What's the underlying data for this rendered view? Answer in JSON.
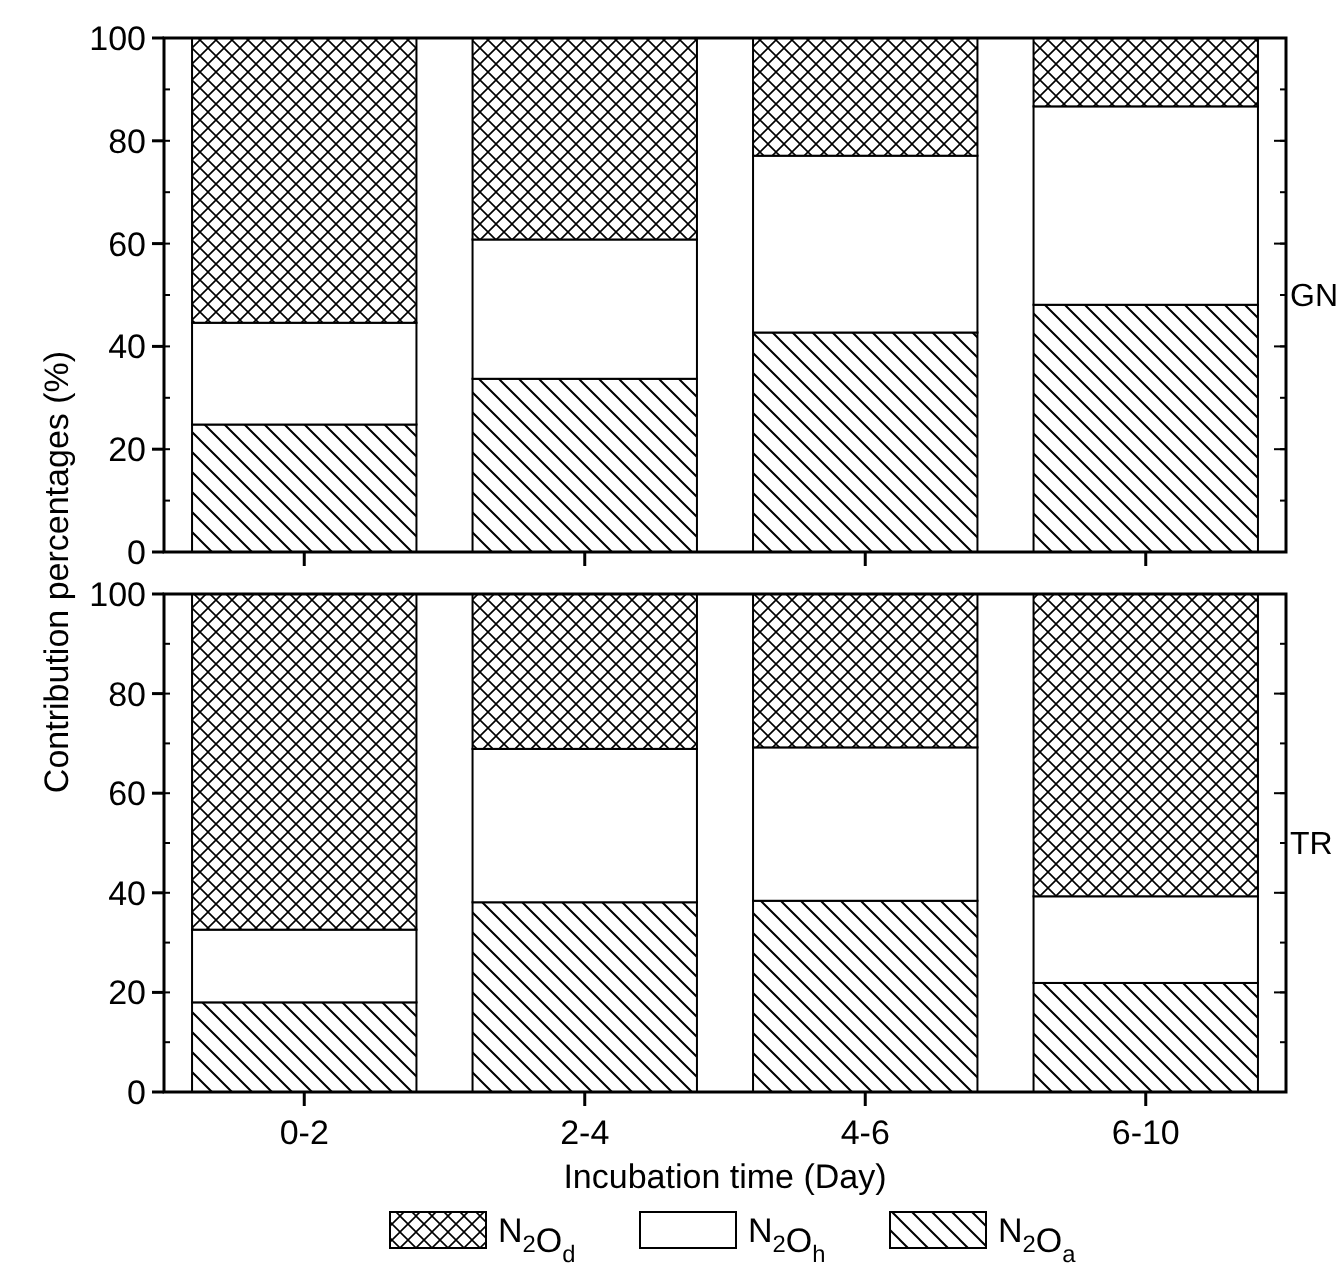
{
  "chart_data": [
    {
      "type": "bar",
      "stacked": true,
      "title": "GN",
      "categories": [
        null,
        null,
        null,
        null
      ],
      "ylabel": "Contribution percentages (%)",
      "ylim": [
        0,
        100
      ],
      "yticks": [
        0,
        20,
        40,
        60,
        80,
        100
      ],
      "tick_labels": "y",
      "legend": false,
      "series": [
        {
          "color": "#000000",
          "values": [
            24.8,
            33.7,
            42.7,
            48.1
          ]
        },
        {
          "color": "#ffffff",
          "values": [
            19.8,
            27.1,
            34.4,
            38.6
          ]
        },
        {
          "color": "#000000",
          "values": [
            55.4,
            39.2,
            22.9,
            13.3
          ]
        }
      ]
    },
    {
      "type": "bar",
      "stacked": true,
      "title": "TR",
      "categories": [
        "0-2",
        "2-4",
        "4-6",
        "6-10"
      ],
      "xlabel": "Incubation time (Day)",
      "ylim": [
        0,
        100
      ],
      "yticks": [
        0,
        20,
        40,
        60,
        80,
        100
      ],
      "legend": "bottom",
      "series": [
        {
          "name": "N$_{2}$O$_{a}$",
          "color": "#000000",
          "values": [
            18.0,
            38.1,
            38.4,
            21.9
          ]
        },
        {
          "name": "N$_{2}$O$_{h}$",
          "color": "#ffffff",
          "values": [
            14.6,
            30.8,
            30.8,
            17.4
          ]
        },
        {
          "name": "N$_{2}$O$_{d}$",
          "color": "#000000",
          "values": [
            67.4,
            31.1,
            30.8,
            60.7
          ]
        }
      ]
    }
  ]
}
